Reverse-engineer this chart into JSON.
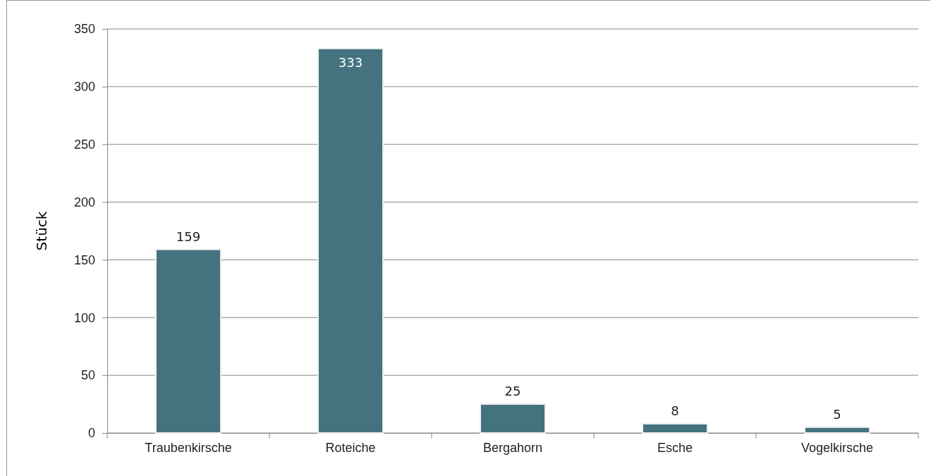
{
  "chart_data": {
    "type": "bar",
    "ylabel": "Stück",
    "categories": [
      "Traubenkirsche",
      "Roteiche",
      "Bergahorn",
      "Esche",
      "Vogelkirsche"
    ],
    "values": [
      159,
      333,
      25,
      8,
      5
    ],
    "color": "#44737f",
    "ylim": [
      0,
      350
    ],
    "yticks": [
      0,
      50,
      100,
      150,
      200,
      250,
      300,
      350
    ],
    "grid": "y",
    "data_labels": true
  }
}
